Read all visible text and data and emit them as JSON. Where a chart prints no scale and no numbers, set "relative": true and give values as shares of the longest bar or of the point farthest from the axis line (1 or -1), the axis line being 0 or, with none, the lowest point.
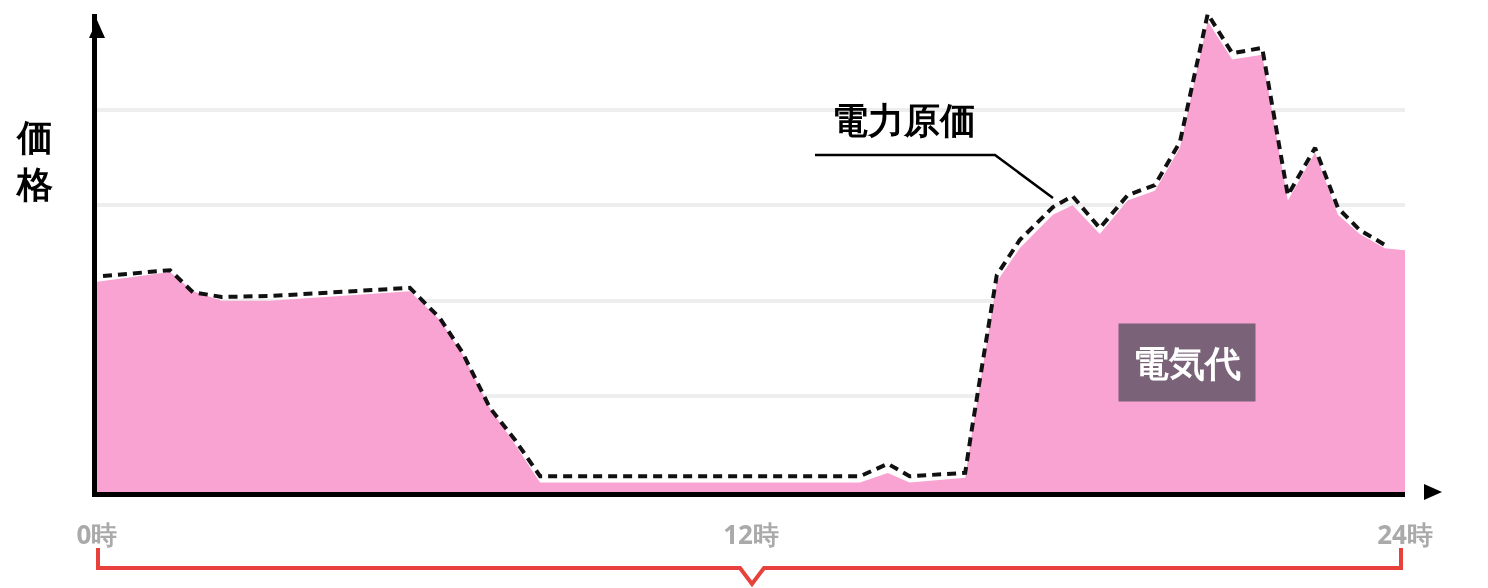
{
  "chart_data": {
    "type": "line",
    "relative": true,
    "ylabel": "価格",
    "xlim": [
      0,
      24
    ],
    "xticks": [
      {
        "value": 0,
        "label": "0時"
      },
      {
        "value": 12,
        "label": "12時"
      },
      {
        "value": 24,
        "label": "24時"
      }
    ],
    "grid": "y",
    "legend": false,
    "series": [
      {
        "name": "電気代",
        "type": "area",
        "color": "#f9a3d3",
        "x": [
          0,
          1.34,
          1.76,
          2.29,
          3.17,
          5.74,
          6.29,
          6.7,
          7.21,
          7.67,
          8.13,
          14,
          14.51,
          14.91,
          15.93,
          16.05,
          16.51,
          16.93,
          17.54,
          17.9,
          18.4,
          18.91,
          19.41,
          19.87,
          20.38,
          20.83,
          21.38,
          21.85,
          22.35,
          22.77,
          23.17,
          23.63,
          24
        ],
        "values": [
          0.44,
          0.46,
          0.42,
          0.4,
          0.4,
          0.42,
          0.36,
          0.29,
          0.175,
          0.1,
          0.02,
          0.02,
          0.04,
          0.02,
          0.03,
          0.12,
          0.44,
          0.51,
          0.58,
          0.6,
          0.54,
          0.61,
          0.63,
          0.72,
          0.985,
          0.905,
          0.915,
          0.61,
          0.71,
          0.58,
          0.54,
          0.51,
          0.506
        ]
      },
      {
        "name": "電力原価",
        "color": "#111111",
        "line_style": "dashed",
        "x": [
          0.11,
          1.34,
          1.76,
          2.29,
          3.17,
          5.74,
          6.29,
          6.7,
          7.21,
          7.67,
          8.13,
          14,
          14.51,
          14.91,
          15.93,
          16.05,
          16.51,
          16.93,
          17.54,
          17.9,
          18.4,
          18.91,
          19.41,
          19.87,
          20.38,
          20.83,
          21.38,
          21.85,
          22.35,
          22.77,
          23.17,
          23.63
        ],
        "values": [
          0.452,
          0.464,
          0.418,
          0.408,
          0.41,
          0.427,
          0.364,
          0.293,
          0.176,
          0.109,
          0.033,
          0.033,
          0.059,
          0.033,
          0.04,
          0.13,
          0.454,
          0.527,
          0.596,
          0.619,
          0.552,
          0.621,
          0.642,
          0.732,
          1,
          0.918,
          0.929,
          0.621,
          0.72,
          0.594,
          0.548,
          0.517
        ]
      }
    ]
  }
}
